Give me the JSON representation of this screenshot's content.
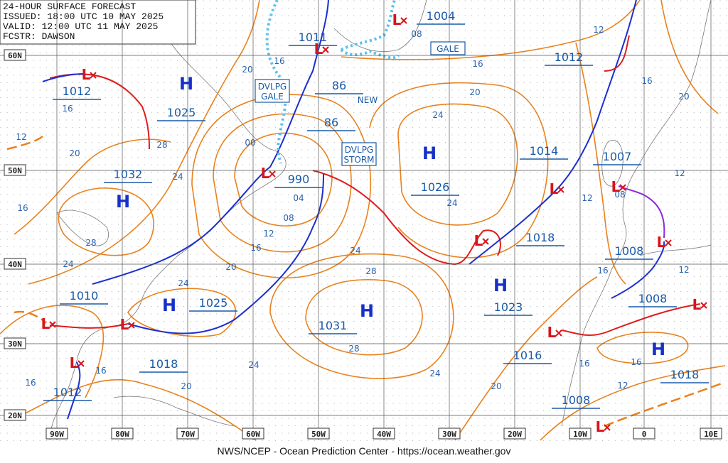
{
  "header": {
    "lines": [
      "24-HOUR SURFACE FORECAST",
      "ISSUED: 18:00 UTC 10 MAY 2025",
      "VALID: 12:00 UTC 11 MAY 2025",
      "FCSTR:  DAWSON"
    ]
  },
  "footer": "NWS/NCEP - Ocean Prediction Center - https://ocean.weather.gov",
  "latitudes": [
    "60N",
    "50N",
    "40N",
    "30N",
    "20N"
  ],
  "longitudes": [
    "90W",
    "80W",
    "70W",
    "60W",
    "50W",
    "40W",
    "30W",
    "20W",
    "10W",
    "0",
    "10E"
  ],
  "highs": [
    "H",
    "H",
    "H",
    "H",
    "H",
    "H",
    "H"
  ],
  "lows": [
    "L",
    "L",
    "L",
    "L",
    "L",
    "L",
    "L",
    "L",
    "L",
    "L",
    "L",
    "L",
    "L",
    "L"
  ],
  "pressure_labels": [
    "1004",
    "1011",
    "1012",
    "1025",
    "1032",
    "86",
    "86",
    "990",
    "1026",
    "1014",
    "1007",
    "1018",
    "1012",
    "1008",
    "1010",
    "1025",
    "1031",
    "1023",
    "1008",
    "1016",
    "1018",
    "1018",
    "1012",
    "1008"
  ],
  "boxed_notes": [
    [
      "DVLPG",
      "GALE"
    ],
    [
      "DVLPG",
      "STORM"
    ],
    [
      "GALE"
    ]
  ],
  "notes": [
    "NEW"
  ],
  "contour_labels": [
    "16",
    "20",
    "16",
    "12",
    "20",
    "28",
    "00",
    "24",
    "16",
    "28",
    "04",
    "08",
    "12",
    "16",
    "24",
    "20",
    "24",
    "24",
    "28",
    "20",
    "24",
    "24",
    "16",
    "08",
    "12",
    "16",
    "20",
    "12",
    "12",
    "08",
    "16",
    "12",
    "28",
    "24",
    "24",
    "20",
    "16",
    "16",
    "20",
    "16",
    "16",
    "12"
  ]
}
